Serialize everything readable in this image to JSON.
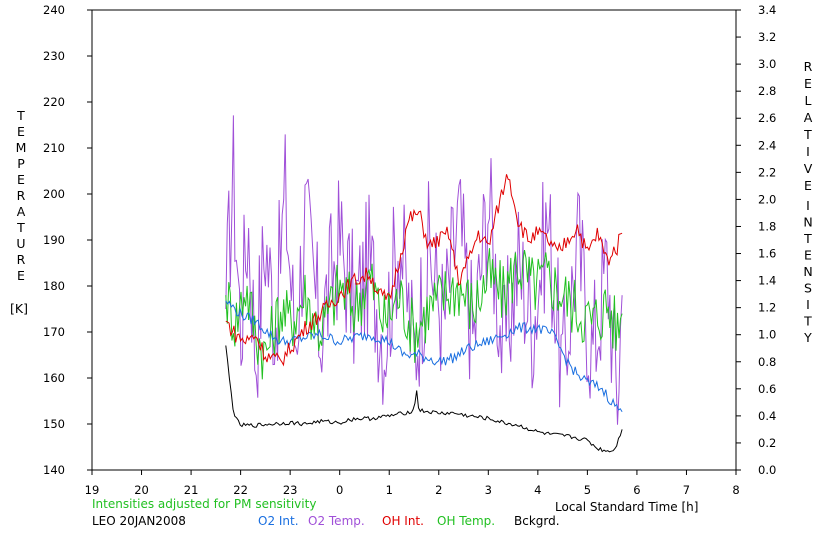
{
  "chart_data": {
    "type": "line",
    "left_axis": {
      "label_letters": [
        "T",
        "E",
        "M",
        "P",
        "E",
        "R",
        "A",
        "T",
        "U",
        "R",
        "E"
      ],
      "unit": "[K]",
      "ticks": [
        "140",
        "150",
        "160",
        "170",
        "180",
        "190",
        "200",
        "210",
        "220",
        "230",
        "240"
      ],
      "range": [
        140,
        240
      ]
    },
    "right_axis": {
      "label_word1": [
        "R",
        "E",
        "L",
        "A",
        "T",
        "I",
        "V",
        "E"
      ],
      "label_word2": [
        "I",
        "N",
        "T",
        "E",
        "N",
        "S",
        "I",
        "T",
        "Y"
      ],
      "ticks": [
        "0.0",
        "0.2",
        "0.4",
        "0.6",
        "0.8",
        "1.0",
        "1.2",
        "1.4",
        "1.6",
        "1.8",
        "2.0",
        "2.2",
        "2.4",
        "2.6",
        "2.8",
        "3.0",
        "3.2",
        "3.4"
      ],
      "range": [
        0,
        3.4
      ]
    },
    "x_axis": {
      "ticks": [
        "19",
        "20",
        "21",
        "22",
        "23",
        "0",
        "1",
        "2",
        "3",
        "4",
        "5",
        "6",
        "7",
        "8"
      ],
      "range_hours": [
        19,
        32
      ],
      "label": "Local Standard Time [h]"
    },
    "series": [
      {
        "name": "O2 Int.",
        "axis": "right",
        "color": "#1a6fe0",
        "x": [
          21.7,
          22.0,
          22.3,
          22.6,
          22.8,
          23.0,
          23.3,
          23.6,
          24.0,
          24.3,
          24.6,
          25.0,
          25.3,
          25.6,
          26.0,
          26.3,
          26.6,
          27.0,
          27.3,
          27.6,
          28.0,
          28.3,
          28.6,
          28.8,
          29.0,
          29.3,
          29.5,
          29.7
        ],
        "values": [
          1.25,
          1.15,
          1.1,
          1.0,
          0.95,
          0.95,
          0.98,
          1.0,
          0.95,
          0.98,
          1.0,
          0.95,
          0.85,
          0.85,
          0.8,
          0.83,
          0.9,
          0.95,
          1.0,
          1.05,
          1.05,
          1.0,
          0.8,
          0.7,
          0.65,
          0.6,
          0.5,
          0.43
        ]
      },
      {
        "name": "O2 Temp.",
        "axis": "left",
        "color": "#a050d8",
        "x": [
          21.7,
          21.85,
          22.0,
          22.15,
          22.3,
          22.5,
          22.7,
          22.9,
          23.1,
          23.3,
          23.6,
          24.0,
          24.3,
          24.6,
          24.9,
          25.2,
          25.5,
          25.8,
          26.1,
          26.4,
          26.7,
          27.0,
          27.3,
          27.6,
          27.9,
          28.2,
          28.5,
          28.8,
          29.1,
          29.4,
          29.6,
          29.7
        ],
        "values": [
          175,
          205,
          170,
          195,
          165,
          190,
          172,
          200,
          168,
          195,
          170,
          190,
          175,
          185,
          168,
          192,
          165,
          188,
          172,
          195,
          168,
          200,
          165,
          185,
          172,
          195,
          160,
          190,
          165,
          185,
          155,
          178
        ]
      },
      {
        "name": "OH Int.",
        "axis": "right",
        "color": "#e00000",
        "x": [
          21.7,
          21.9,
          22.1,
          22.3,
          22.5,
          22.8,
          23.0,
          23.3,
          23.6,
          24.0,
          24.3,
          24.6,
          24.8,
          25.0,
          25.2,
          25.4,
          25.6,
          25.8,
          26.0,
          26.2,
          26.4,
          26.6,
          26.8,
          27.0,
          27.2,
          27.4,
          27.6,
          27.8,
          28.0,
          28.2,
          28.4,
          28.6,
          28.8,
          29.0,
          29.2,
          29.4,
          29.6,
          29.7
        ],
        "values": [
          1.1,
          1.0,
          0.95,
          1.0,
          0.85,
          0.8,
          0.9,
          1.05,
          1.15,
          1.3,
          1.4,
          1.45,
          1.3,
          1.25,
          1.55,
          1.85,
          1.9,
          1.65,
          1.7,
          1.75,
          1.4,
          1.55,
          1.75,
          1.65,
          1.95,
          2.2,
          1.85,
          1.7,
          1.75,
          1.7,
          1.6,
          1.7,
          1.8,
          1.6,
          1.75,
          1.55,
          1.65,
          1.75
        ]
      },
      {
        "name": "OH Temp.",
        "axis": "left",
        "color": "#22c022",
        "x": [
          21.7,
          21.9,
          22.1,
          22.3,
          22.5,
          22.8,
          23.0,
          23.3,
          23.6,
          24.0,
          24.3,
          24.6,
          24.9,
          25.2,
          25.5,
          25.8,
          26.1,
          26.4,
          26.7,
          27.0,
          27.3,
          27.6,
          27.9,
          28.2,
          28.5,
          28.8,
          29.1,
          29.4,
          29.6,
          29.7
        ],
        "values": [
          178,
          172,
          180,
          170,
          165,
          175,
          172,
          178,
          170,
          180,
          175,
          182,
          172,
          178,
          170,
          175,
          178,
          180,
          175,
          182,
          178,
          185,
          180,
          182,
          178,
          175,
          172,
          176,
          170,
          174
        ]
      },
      {
        "name": "Bckgrd.",
        "axis": "right",
        "color": "#000000",
        "x": [
          21.7,
          21.78,
          21.85,
          21.9,
          22.0,
          22.3,
          22.6,
          23.0,
          23.3,
          23.6,
          24.0,
          24.3,
          24.6,
          25.0,
          25.3,
          25.5,
          25.55,
          25.6,
          26.0,
          26.3,
          26.6,
          27.0,
          27.3,
          27.6,
          28.0,
          28.3,
          28.6,
          29.0,
          29.2,
          29.4,
          29.55,
          29.7
        ],
        "values": [
          0.92,
          0.65,
          0.45,
          0.38,
          0.33,
          0.33,
          0.34,
          0.35,
          0.34,
          0.36,
          0.35,
          0.38,
          0.38,
          0.4,
          0.42,
          0.44,
          0.6,
          0.44,
          0.42,
          0.42,
          0.4,
          0.38,
          0.35,
          0.33,
          0.28,
          0.26,
          0.25,
          0.22,
          0.16,
          0.14,
          0.15,
          0.3
        ]
      }
    ],
    "legend": [
      "O2 Int.",
      "O2 Temp.",
      "OH Int.",
      "OH Temp.",
      "Bckgrd."
    ],
    "note": "Intensities adjusted for PM sensitivity",
    "site_date": "LEO 20JAN2008"
  },
  "colors": {
    "o2_int": "#1a6fe0",
    "o2_temp": "#a050d8",
    "oh_int": "#e00000",
    "oh_temp": "#22c022",
    "bckgrd": "#000000",
    "note": "#22c022"
  }
}
